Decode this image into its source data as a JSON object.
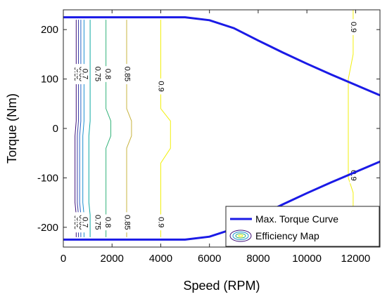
{
  "chart_data": {
    "type": "line",
    "xlabel": "Speed (RPM)",
    "ylabel": "Torque (Nm)",
    "xlim": [
      0,
      13000
    ],
    "ylim": [
      -240,
      240
    ],
    "xticks": [
      0,
      2000,
      4000,
      6000,
      8000,
      10000,
      12000
    ],
    "yticks": [
      -200,
      -100,
      0,
      100,
      200
    ],
    "grid": false,
    "legend_position": "bottom-right",
    "series": [
      {
        "name": "Max. Torque Curve",
        "color": "#1a1ae6",
        "x": [
          0,
          5000,
          6000,
          7000,
          8000,
          9000,
          10000,
          11000,
          12000,
          13000
        ],
        "y": [
          225,
          225,
          219,
          203,
          178,
          154,
          131,
          109,
          88,
          67
        ],
        "mirror": true
      }
    ],
    "contours": {
      "name": "Efficiency Map",
      "levels": [
        {
          "value": 0.55,
          "label": "0.55",
          "color": "#3e0f78",
          "x": [
            530,
            530,
            480,
            480,
            530,
            530
          ],
          "y": [
            220,
            15,
            -15,
            -150,
            -175,
            -220
          ],
          "label_points": [
            [
              545,
              110
            ],
            [
              545,
              -190
            ]
          ]
        },
        {
          "value": 0.6,
          "label": "0.6",
          "color": "#3b3ea8",
          "x": [
            620,
            620,
            575,
            575,
            620,
            620
          ],
          "y": [
            220,
            15,
            -15,
            -150,
            -175,
            -220
          ],
          "label_points": [
            [
              640,
              110
            ],
            [
              640,
              -190
            ]
          ]
        },
        {
          "value": 0.65,
          "label": "0.65",
          "color": "#2a64c8",
          "x": [
            720,
            720,
            670,
            670,
            720,
            720
          ],
          "y": [
            220,
            15,
            -15,
            -150,
            -175,
            -220
          ],
          "label_points": [
            [
              745,
              110
            ],
            [
              745,
              -190
            ]
          ]
        },
        {
          "value": 0.7,
          "label": "0.7",
          "color": "#1b8fd1",
          "x": [
            850,
            850,
            800,
            800,
            850,
            850
          ],
          "y": [
            220,
            15,
            -15,
            -150,
            -175,
            -220
          ],
          "label_points": [
            [
              880,
              110
            ],
            [
              880,
              -190
            ]
          ]
        },
        {
          "value": 0.75,
          "label": "0.75",
          "color": "#0fa8a4",
          "x": [
            1100,
            1100,
            1050,
            1050,
            1100,
            1100
          ],
          "y": [
            220,
            15,
            -15,
            -150,
            -175,
            -220
          ],
          "label_points": [
            [
              1400,
              110
            ],
            [
              1400,
              -190
            ]
          ]
        },
        {
          "value": 0.8,
          "label": "0.8",
          "color": "#35b37b",
          "x": [
            1750,
            1750,
            1950,
            1950,
            1750,
            1750
          ],
          "y": [
            220,
            40,
            15,
            -15,
            -40,
            -220
          ],
          "label_points": [
            [
              1820,
              110
            ],
            [
              1820,
              -190
            ]
          ]
        },
        {
          "value": 0.85,
          "label": "0.85",
          "color": "#c8b440",
          "x": [
            2600,
            2600,
            2800,
            2800,
            2600,
            2600
          ],
          "y": [
            220,
            40,
            15,
            -15,
            -40,
            -220
          ],
          "label_points": [
            [
              2620,
              110
            ],
            [
              2620,
              -190
            ]
          ]
        },
        {
          "value": 0.9,
          "label": "0.9",
          "color": "#f2f00e",
          "x": [
            4000,
            4000,
            4400,
            4400,
            4000,
            4000
          ],
          "y": [
            220,
            40,
            15,
            -40,
            -70,
            -220
          ],
          "label_points": [
            [
              4000,
              85
            ],
            [
              4000,
              -190
            ]
          ]
        },
        {
          "value": 0.9,
          "label": "0.9",
          "color": "#f2f00e",
          "x": [
            11900,
            11900,
            11700,
            11700,
            11900,
            11900,
            11900
          ],
          "y": [
            240,
            150,
            100,
            -100,
            -130,
            -180,
            -240
          ],
          "label_points": [
            [
              11900,
              205
            ],
            [
              11900,
              -95
            ]
          ]
        }
      ]
    }
  },
  "legend": {
    "items": [
      "Max. Torque Curve",
      "Efficiency  Map"
    ]
  }
}
